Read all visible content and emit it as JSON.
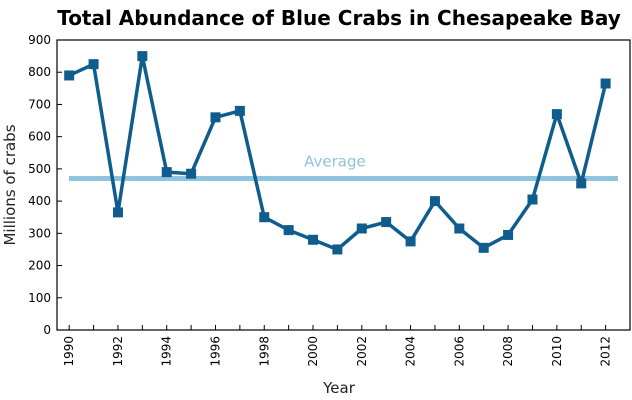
{
  "chart_data": {
    "type": "line",
    "title": "Total Abundance of Blue Crabs in Chesapeake Bay",
    "xlabel": "Year",
    "ylabel": "Millions of crabs",
    "xlim": [
      1989.5,
      2013
    ],
    "ylim": [
      0,
      900
    ],
    "yticks": [
      0,
      100,
      200,
      300,
      400,
      500,
      600,
      700,
      800,
      900
    ],
    "ytick_labels": [
      "0",
      "100",
      "200",
      "300",
      "400",
      "500",
      "600",
      "700",
      "800",
      "900"
    ],
    "xticks": [
      1990,
      1992,
      1994,
      1996,
      1998,
      2000,
      2002,
      2004,
      2006,
      2008,
      2010,
      2012
    ],
    "xtick_labels": [
      "1990",
      "1992",
      "1994",
      "1996",
      "1998",
      "2000",
      "2002",
      "2004",
      "2006",
      "2008",
      "2010",
      "2012"
    ],
    "grid": false,
    "series": [
      {
        "name": "Total abundance",
        "color": "#0e5d8d",
        "marker": "square",
        "x": [
          1990,
          1991,
          1992,
          1993,
          1994,
          1995,
          1996,
          1997,
          1998,
          1999,
          2000,
          2001,
          2002,
          2003,
          2004,
          2005,
          2006,
          2007,
          2008,
          2009,
          2010,
          2011,
          2012
        ],
        "values": [
          790,
          825,
          365,
          850,
          490,
          485,
          660,
          680,
          350,
          310,
          280,
          250,
          315,
          335,
          275,
          400,
          315,
          255,
          295,
          405,
          670,
          455,
          765
        ]
      }
    ],
    "reference_lines": [
      {
        "name": "Average",
        "label": "Average",
        "value": 470,
        "color": "#8fc3de"
      }
    ]
  }
}
